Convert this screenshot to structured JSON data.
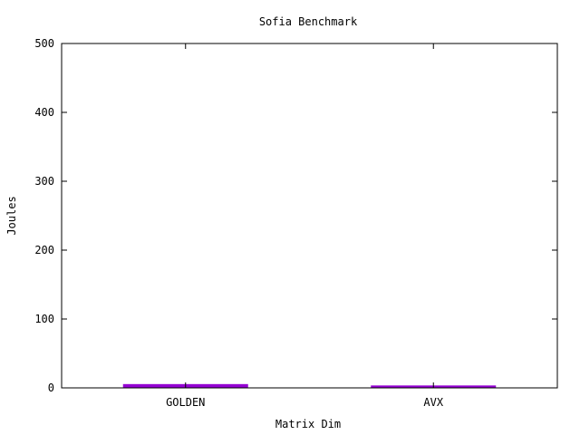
{
  "chart_data": {
    "type": "bar",
    "title": "Sofia Benchmark",
    "xlabel": "Matrix Dim",
    "ylabel": "Joules",
    "categories": [
      "GOLDEN",
      "AVX"
    ],
    "series": [
      {
        "values": [
          5.5,
          3.5
        ]
      }
    ],
    "ylim": [
      0,
      500
    ],
    "yticks": [
      0,
      100,
      200,
      300,
      400,
      500
    ],
    "grid": false,
    "bar_color": "#9400d3"
  }
}
